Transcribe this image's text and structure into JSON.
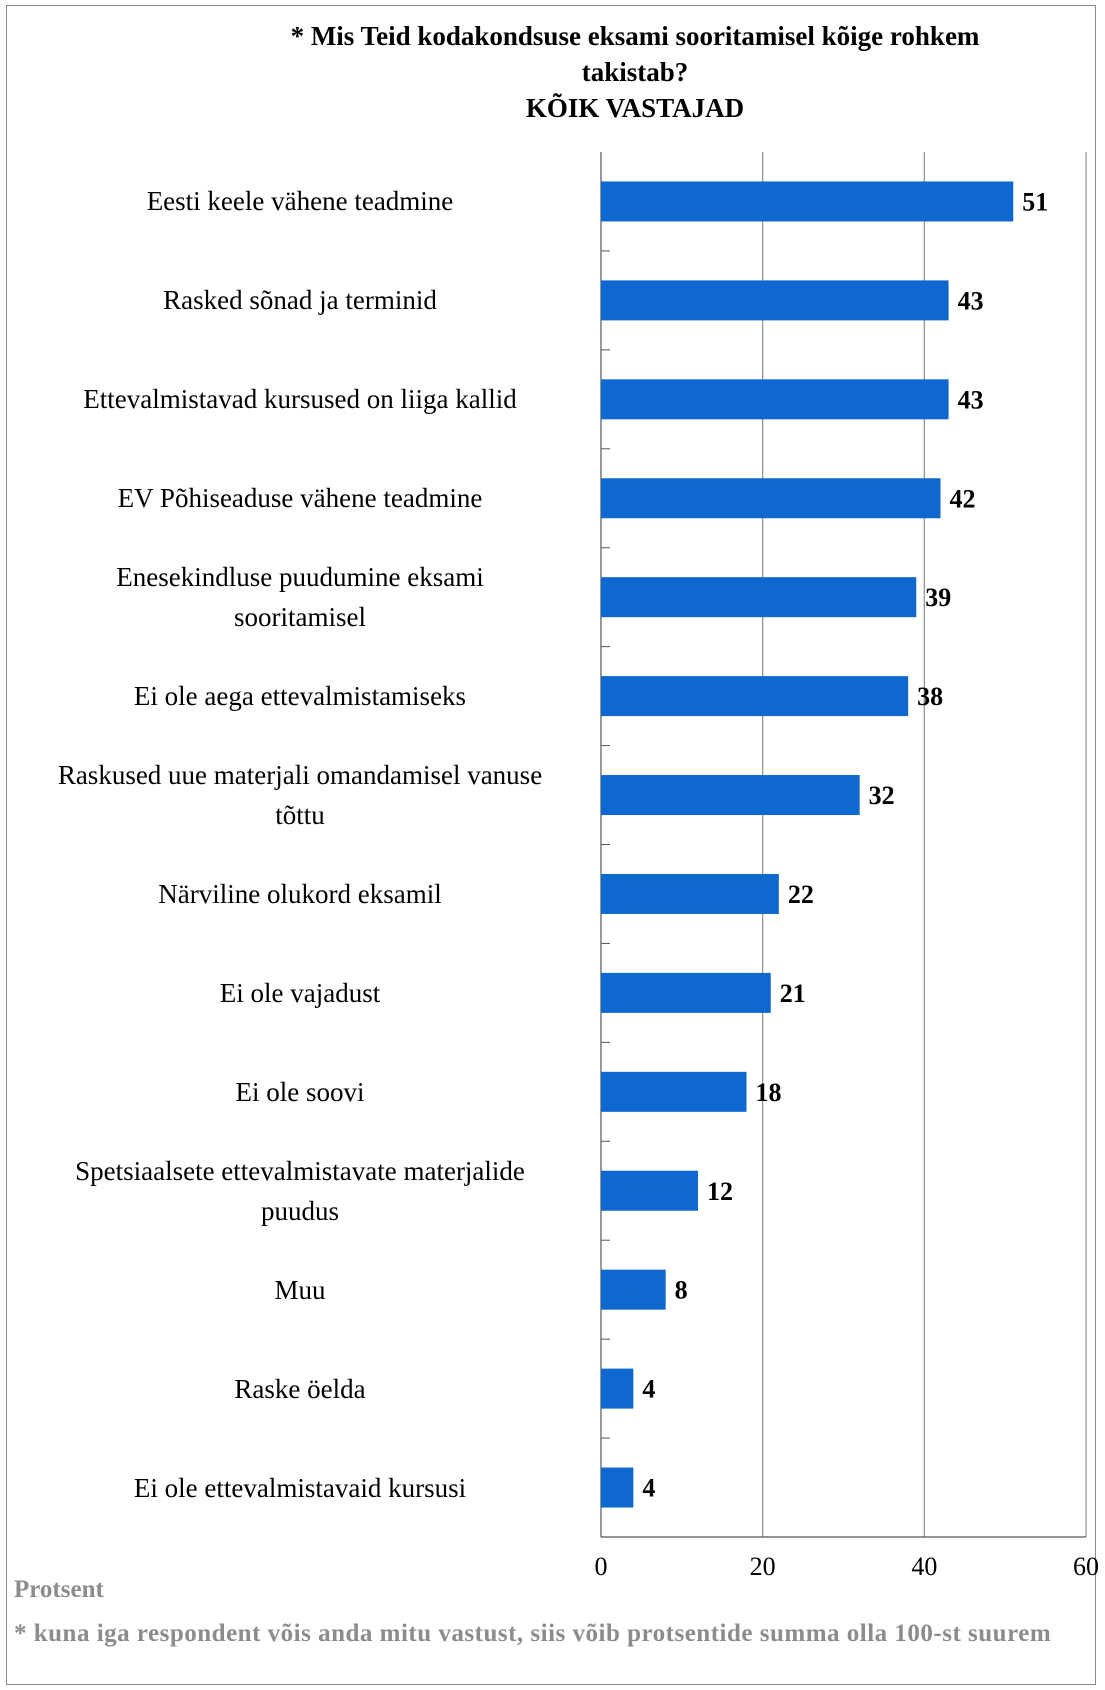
{
  "chart_data": {
    "type": "bar",
    "orientation": "horizontal",
    "title": [
      "*  Mis Teid kodakondsuse eksami sooritamisel kõige rohkem",
      "takistab?",
      "KÕIK VASTAJAD"
    ],
    "categories": [
      "Eesti keele vähene teadmine",
      "Rasked sõnad ja terminid",
      "Ettevalmistavad kursused on liiga kallid",
      "EV Põhiseaduse vähene teadmine",
      "Enesekindluse puudumine eksami sooritamisel",
      "Ei ole aega ettevalmistamiseks",
      "Raskused uue materjali omandamisel vanuse tõttu",
      "Närviline olukord eksamil",
      "Ei ole vajadust",
      "Ei ole soovi",
      "Spetsiaalsete ettevalmistavate materjalide puudus",
      "Muu",
      "Raske öelda",
      "Ei ole ettevalmistavaid kursusi"
    ],
    "category_lines": [
      [
        "Eesti keele vähene teadmine"
      ],
      [
        "Rasked sõnad ja terminid"
      ],
      [
        "Ettevalmistavad kursused on liiga kallid"
      ],
      [
        "EV Põhiseaduse vähene teadmine"
      ],
      [
        "Enesekindluse puudumine eksami",
        "sooritamisel"
      ],
      [
        "Ei ole aega ettevalmistamiseks"
      ],
      [
        "Raskused uue materjali omandamisel vanuse",
        "tõttu"
      ],
      [
        "Närviline olukord eksamil"
      ],
      [
        "Ei ole vajadust"
      ],
      [
        "Ei ole soovi"
      ],
      [
        "Spetsiaalsete ettevalmistavate materjalide",
        "puudus"
      ],
      [
        "Muu"
      ],
      [
        "Raske öelda"
      ],
      [
        "Ei ole ettevalmistavaid kursusi"
      ]
    ],
    "values": [
      51,
      43,
      43,
      42,
      39,
      38,
      32,
      22,
      21,
      18,
      12,
      8,
      4,
      4
    ],
    "xlim": [
      0,
      60
    ],
    "xticks": [
      0,
      20,
      40,
      60
    ],
    "grid": true,
    "bar_color": "#0f68d0",
    "grid_color": "#8c8c8c",
    "axis_unit": "Protsent",
    "footnote": "* kuna iga respondent võis anda mitu vastust, siis võib protsentide summa olla 100-st suurem"
  }
}
